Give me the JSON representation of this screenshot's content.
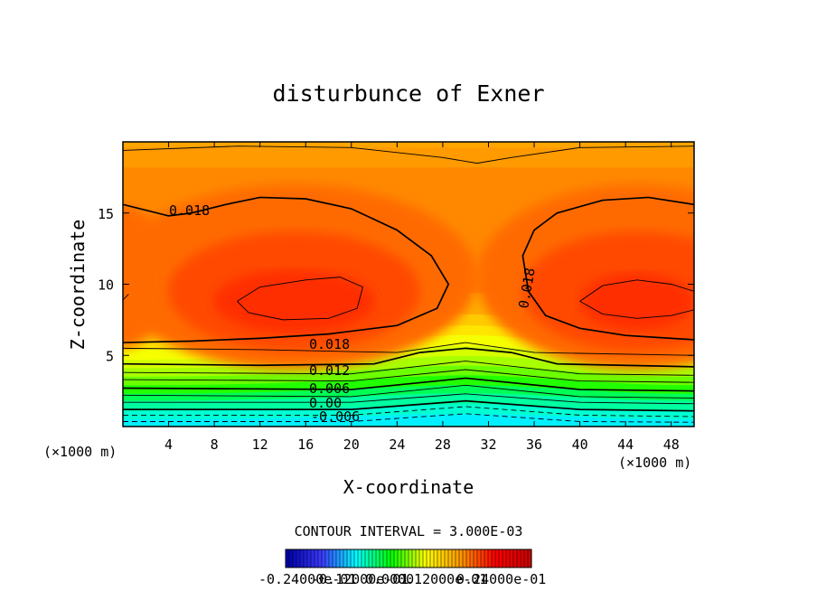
{
  "chart_data": {
    "type": "heatmap",
    "subtype": "filled-contour",
    "title": "disturbunce of Exner",
    "xlabel": "X-coordinate",
    "ylabel": "Z-coordinate",
    "x_unit": "(×1000 m)",
    "y_unit": "(×1000 m)",
    "xlim": [
      0,
      50
    ],
    "ylim": [
      0,
      20
    ],
    "x_ticks": [
      4,
      8,
      12,
      16,
      20,
      24,
      28,
      32,
      36,
      40,
      44,
      48
    ],
    "y_ticks": [
      5,
      10,
      15
    ],
    "contour_interval_text": "CONTOUR INTERVAL = 3.000E-03",
    "contour_labels": [
      "0.018",
      "0.018",
      "0.018",
      "0.012",
      "0.006",
      "0.00",
      "-0.006"
    ],
    "colorbar": {
      "range": [
        -0.024,
        0.024
      ],
      "colormap": [
        "#0000aa",
        "#3a3aff",
        "#00ffff",
        "#00ff00",
        "#ffff00",
        "#ff9900",
        "#ff0000",
        "#cc0000"
      ],
      "labels": [
        "-0.24000e-01",
        "-0.12000e-01",
        "0.0000",
        "0.12000e-01",
        "0.24000e-01"
      ]
    }
  }
}
